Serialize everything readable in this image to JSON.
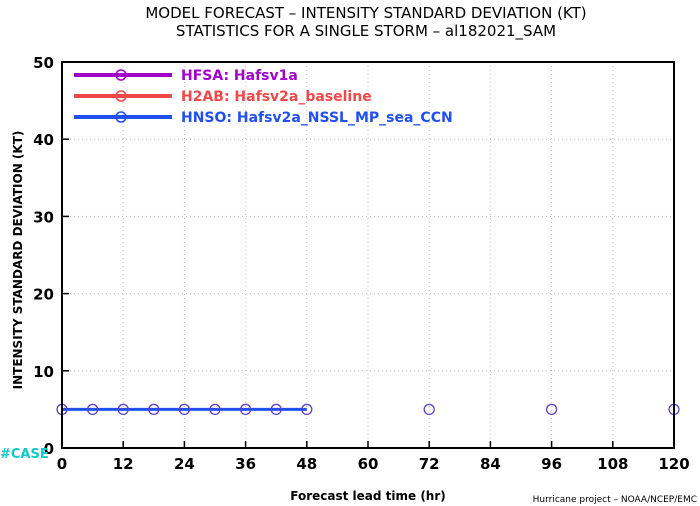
{
  "chart_data": {
    "type": "line",
    "title": "MODEL FORECAST – INTENSITY STANDARD DEVIATION (KT)",
    "subtitle": "STATISTICS FOR A SINGLE STORM – al182021_SAM",
    "xlabel": "Forecast lead time (hr)",
    "ylabel": "INTENSITY STANDARD DEVIATION (KT)",
    "xlim": [
      0,
      120
    ],
    "ylim": [
      0,
      50
    ],
    "x_ticks": [
      "0",
      "12",
      "24",
      "36",
      "48",
      "60",
      "72",
      "84",
      "96",
      "108",
      "120"
    ],
    "y_ticks": [
      "0",
      "10",
      "20",
      "30",
      "40",
      "50"
    ],
    "grid": true,
    "legend_position": "top-left",
    "series": [
      {
        "name": "HFSA: Hafsv1a",
        "color": "#a000c8",
        "x": [],
        "y": []
      },
      {
        "name": "H2AB: Hafsv2a_baseline",
        "color": "#f04848",
        "x": [],
        "y": []
      },
      {
        "name": "HNSO: Hafsv2a_NSSL_MP_sea_CCN",
        "color": "#2050f0",
        "x": [
          0,
          6,
          12,
          18,
          24,
          30,
          36,
          42,
          48
        ],
        "y": [
          5,
          5,
          5,
          5,
          5,
          5,
          5,
          5,
          5
        ]
      }
    ],
    "sample_markers": {
      "color": "#6040c8",
      "x": [
        0,
        6,
        12,
        18,
        24,
        30,
        36,
        42,
        48,
        72,
        96,
        120
      ],
      "y": [
        5,
        5,
        5,
        5,
        5,
        5,
        5,
        5,
        5,
        5,
        5,
        5
      ]
    }
  },
  "annotations": {
    "case_label": "#CASE",
    "credit": "Hurricane project – NOAA/NCEP/EMC"
  }
}
